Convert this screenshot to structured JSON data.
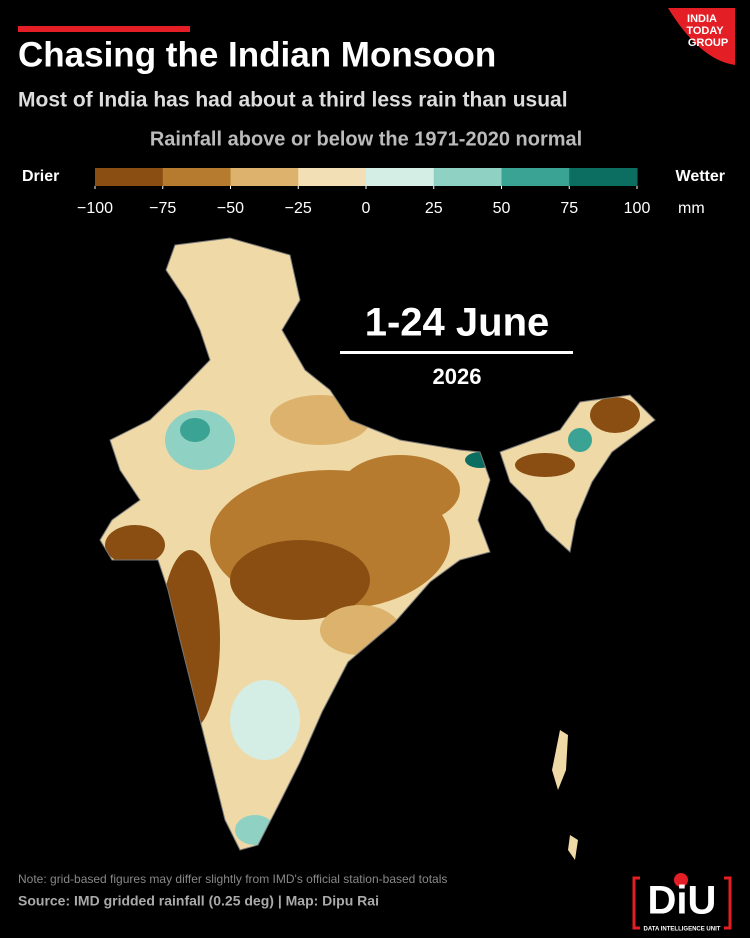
{
  "header": {
    "title": "Chasing the Indian Monsoon",
    "subtitle": "Most of India has had about a third less rain than usual",
    "logo": [
      "INDIA",
      "TODAY",
      "GROUP"
    ]
  },
  "legend": {
    "title": "Rainfall above or below the 1971-2020 normal",
    "low_label": "Drier",
    "high_label": "Wetter",
    "unit": "mm",
    "ticks": [
      {
        "value": -100,
        "label": "−100"
      },
      {
        "value": -75,
        "label": "−75"
      },
      {
        "value": -50,
        "label": "−50"
      },
      {
        "value": -25,
        "label": "−25"
      },
      0,
      25,
      50,
      75,
      100
    ],
    "colors": [
      "#8a4e12",
      "#b67b2e",
      "#dcb26c",
      "#f2dfb5",
      "#d4eee6",
      "#8fd2c3",
      "#3aa393",
      "#0c6e61"
    ]
  },
  "map": {
    "period": "1-24 June",
    "year": "2026"
  },
  "footer": {
    "note": "Note: grid-based figures may differ slightly from IMD's official station-based totals",
    "source": "Source: IMD gridded rainfall (0.25 deg) | Map: Dipu Rai",
    "logo": "DiU",
    "logo_caption": "DATA INTELLIGENCE UNIT"
  }
}
